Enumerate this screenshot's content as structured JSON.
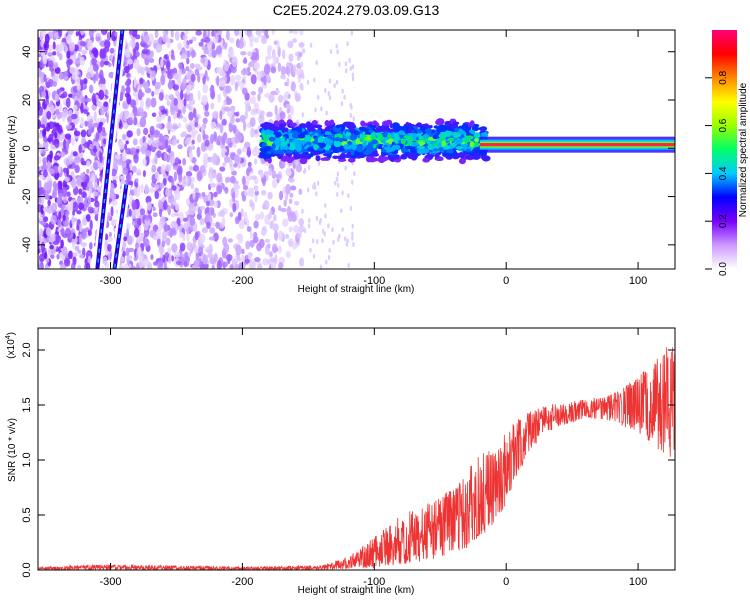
{
  "page_title": "C2E5.2024.279.03.09.G13",
  "chart_data": [
    {
      "type": "heatmap",
      "title": "C2E5.2024.279.03.09.G13",
      "xlabel": "Height of straight line (km)",
      "ylabel": "Frequency (Hz)",
      "xlim": [
        -355,
        128
      ],
      "ylim": [
        -50,
        49
      ],
      "x_ticks": [
        -300,
        -200,
        -100,
        0,
        100
      ],
      "y_ticks": [
        -40,
        -20,
        0,
        20,
        40
      ],
      "colorbar": {
        "label": "Normalized spectral amplitude",
        "range": [
          0,
          1
        ],
        "ticks": [
          0.0,
          0.2,
          0.4,
          0.6,
          0.8
        ],
        "colors": [
          "#ffffff",
          "#cc99ff",
          "#7700ff",
          "#0000ff",
          "#00ccff",
          "#00ff66",
          "#99ff00",
          "#ffff00",
          "#ff8800",
          "#ff0000",
          "#ff0077"
        ]
      },
      "features": {
        "noise_region_x": [
          -355,
          -155
        ],
        "diagonal_streaks": [
          {
            "x_top": -291,
            "y_top": 49,
            "x_bottom": -310,
            "y_bottom": -50
          },
          {
            "x_top": -288,
            "y_top": -15,
            "x_bottom": -297,
            "y_bottom": -50
          }
        ],
        "turbulent_band": {
          "x_range": [
            -185,
            -15
          ],
          "y_range": [
            -8,
            9
          ],
          "center_freq": 3
        },
        "steady_line": {
          "x_range": [
            -20,
            128
          ],
          "freq": 1.5
        }
      }
    },
    {
      "type": "line",
      "xlabel": "Height of straight line (km)",
      "ylabel": "SNR (10 * v/v)",
      "scale_label": "(x10",
      "scale_exponent": "4",
      "xlim": [
        -355,
        128
      ],
      "ylim": [
        0,
        2.2
      ],
      "x_ticks": [
        -300,
        -200,
        -100,
        0,
        100
      ],
      "y_ticks": [
        "0.0",
        "0.5",
        "1.0",
        "1.5",
        "2.0"
      ],
      "line_color": "#ee3333",
      "envelope": {
        "x": [
          -355,
          -300,
          -200,
          -140,
          -120,
          -100,
          -80,
          -60,
          -40,
          -30,
          -20,
          -10,
          0,
          10,
          20,
          30,
          40,
          60,
          80,
          100,
          115,
          128
        ],
        "low": [
          0.0,
          0.0,
          0.0,
          0.0,
          0.01,
          0.02,
          0.05,
          0.08,
          0.15,
          0.2,
          0.3,
          0.4,
          0.6,
          0.9,
          1.1,
          1.25,
          1.3,
          1.38,
          1.35,
          1.25,
          1.1,
          1.0
        ],
        "high": [
          0.03,
          0.05,
          0.03,
          0.04,
          0.12,
          0.3,
          0.5,
          0.6,
          0.75,
          0.9,
          1.05,
          1.1,
          1.25,
          1.4,
          1.45,
          1.5,
          1.52,
          1.55,
          1.6,
          1.75,
          1.95,
          2.1
        ]
      }
    }
  ]
}
